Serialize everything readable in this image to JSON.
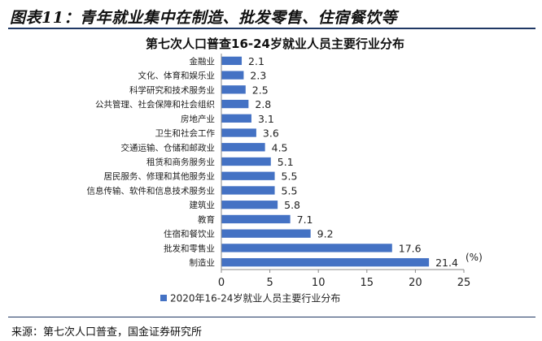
{
  "header": {
    "title": "图表11：青年就业集中在制造、批发零售、住宿餐饮等"
  },
  "chart_data": {
    "type": "bar",
    "orientation": "horizontal",
    "title": "第七次人口普查16-24岁就业人员主要行业分布",
    "categories": [
      "金融业",
      "文化、体育和娱乐业",
      "科学研究和技术服务业",
      "公共管理、社会保障和社会组织",
      "房地产业",
      "卫生和社会工作",
      "交通运输、仓储和邮政业",
      "租赁和商务服务业",
      "居民服务、修理和其他服务业",
      "信息传输、软件和信息技术服务业",
      "建筑业",
      "教育",
      "住宿和餐饮业",
      "批发和零售业",
      "制造业"
    ],
    "values": [
      2.1,
      2.3,
      2.5,
      2.8,
      3.1,
      3.6,
      4.5,
      5.1,
      5.5,
      5.5,
      5.8,
      7.1,
      9.2,
      17.6,
      21.4
    ],
    "unit_label": "(%)",
    "xlim": [
      0,
      25
    ],
    "xticks": [
      0,
      5,
      10,
      15,
      20,
      25
    ],
    "legend": {
      "label": "2020年16-24岁就业人员主要行业分布",
      "placement": "bottom"
    },
    "bar_color": "#4472c4",
    "grid": false
  },
  "footer": {
    "source": "来源：第七次人口普查，国金证券研究所"
  }
}
